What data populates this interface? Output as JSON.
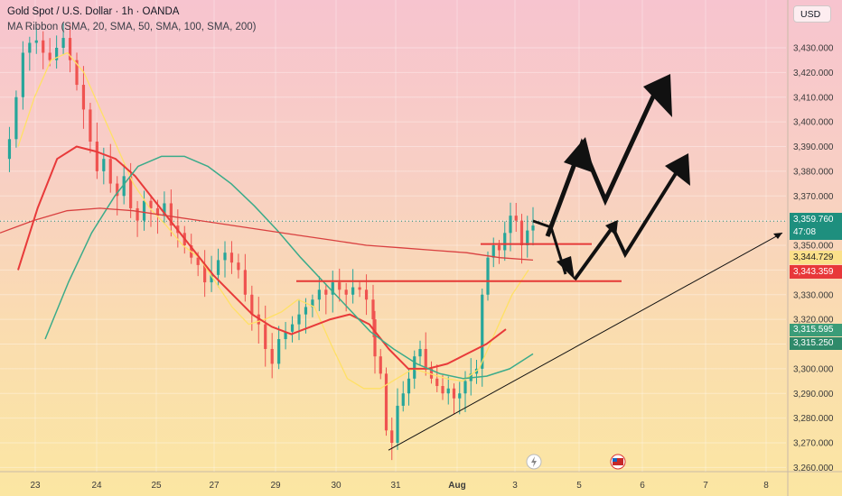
{
  "header": {
    "symbol_line": "Gold Spot / U.S. Dollar · 1h · OANDA",
    "indicator_line": "MA Ribbon (SMA, 20, SMA, 50, SMA, 100, SMA, 200)"
  },
  "currency_button": "USD",
  "price_tags": {
    "last_price": "3,359.760",
    "countdown": "47:08",
    "ma_a": "3,344.729",
    "ma_b": "3,343.359",
    "ma_c": "3,315.595",
    "ma_d": "3,315.250"
  },
  "colors": {
    "up_candle": "#26a69a",
    "down_candle": "#ef5350",
    "last_price_tag": "#1e8f7e",
    "ma_20": "#ffe066",
    "ma_50": "#e83a3a",
    "ma_100": "#3bab8a",
    "ma_200": "#d94040"
  },
  "chart_data": {
    "type": "candlestick",
    "y_ticks": [
      3260,
      3270,
      3280,
      3290,
      3300,
      3310,
      3320,
      3330,
      3340,
      3350,
      3360,
      3370,
      3380,
      3390,
      3400,
      3410,
      3420,
      3430
    ],
    "ylim": [
      3255,
      3440
    ],
    "x_ticks": [
      "23",
      "24",
      "25",
      "27",
      "29",
      "30",
      "31",
      "Aug",
      "3",
      "5",
      "6",
      "7",
      "8"
    ],
    "close_path": [
      3385,
      3393,
      3410,
      3428,
      3432,
      3433,
      3428,
      3425,
      3430,
      3434,
      3425,
      3415,
      3405,
      3392,
      3380,
      3385,
      3375,
      3370,
      3378,
      3365,
      3360,
      3368,
      3365,
      3362,
      3367,
      3358,
      3355,
      3350,
      3345,
      3342,
      3335,
      3338,
      3344,
      3347,
      3343,
      3340,
      3330,
      3322,
      3318,
      3308,
      3302,
      3312,
      3315,
      3318,
      3322,
      3325,
      3328,
      3332,
      3330,
      3335,
      3332,
      3330,
      3333,
      3332,
      3328,
      3320,
      3305,
      3298,
      3275,
      3270,
      3285,
      3290,
      3296,
      3305,
      3308,
      3300,
      3296,
      3293,
      3290,
      3292,
      3288,
      3290,
      3295,
      3298,
      3300,
      3330,
      3345,
      3350,
      3348,
      3355,
      3362,
      3360,
      3350,
      3356,
      3358
    ],
    "series": [
      {
        "name": "SMA 20",
        "values": [
          3390,
          3410,
          3425,
          3428,
          3420,
          3405,
          3390,
          3375,
          3365,
          3358,
          3350,
          3345,
          3335,
          3325,
          3318,
          3320,
          3323,
          3328,
          3325,
          3310,
          3296,
          3292,
          3292,
          3296,
          3300,
          3298,
          3296,
          3295,
          3300,
          3315,
          3330,
          3340
        ]
      },
      {
        "name": "SMA 50",
        "values": [
          3340,
          3365,
          3385,
          3390,
          3388,
          3385,
          3378,
          3368,
          3358,
          3348,
          3338,
          3330,
          3322,
          3317,
          3314,
          3317,
          3320,
          3322,
          3318,
          3308,
          3300,
          3300,
          3302,
          3306,
          3310,
          3316
        ]
      },
      {
        "name": "SMA 100",
        "values": [
          3312,
          3335,
          3355,
          3370,
          3382,
          3386,
          3386,
          3382,
          3375,
          3366,
          3356,
          3345,
          3335,
          3325,
          3315,
          3308,
          3302,
          3298,
          3296,
          3297,
          3300,
          3306
        ]
      },
      {
        "name": "SMA 200",
        "values": [
          3355,
          3360,
          3364,
          3365,
          3364,
          3362,
          3360,
          3358,
          3356,
          3354,
          3352,
          3350,
          3349,
          3348,
          3347,
          3345,
          3344
        ]
      }
    ],
    "annotations": {
      "trendline": [
        [
          3268
        ],
        [
          3355
        ]
      ],
      "resistance_lines": [
        3350.5,
        3335.5
      ]
    }
  }
}
